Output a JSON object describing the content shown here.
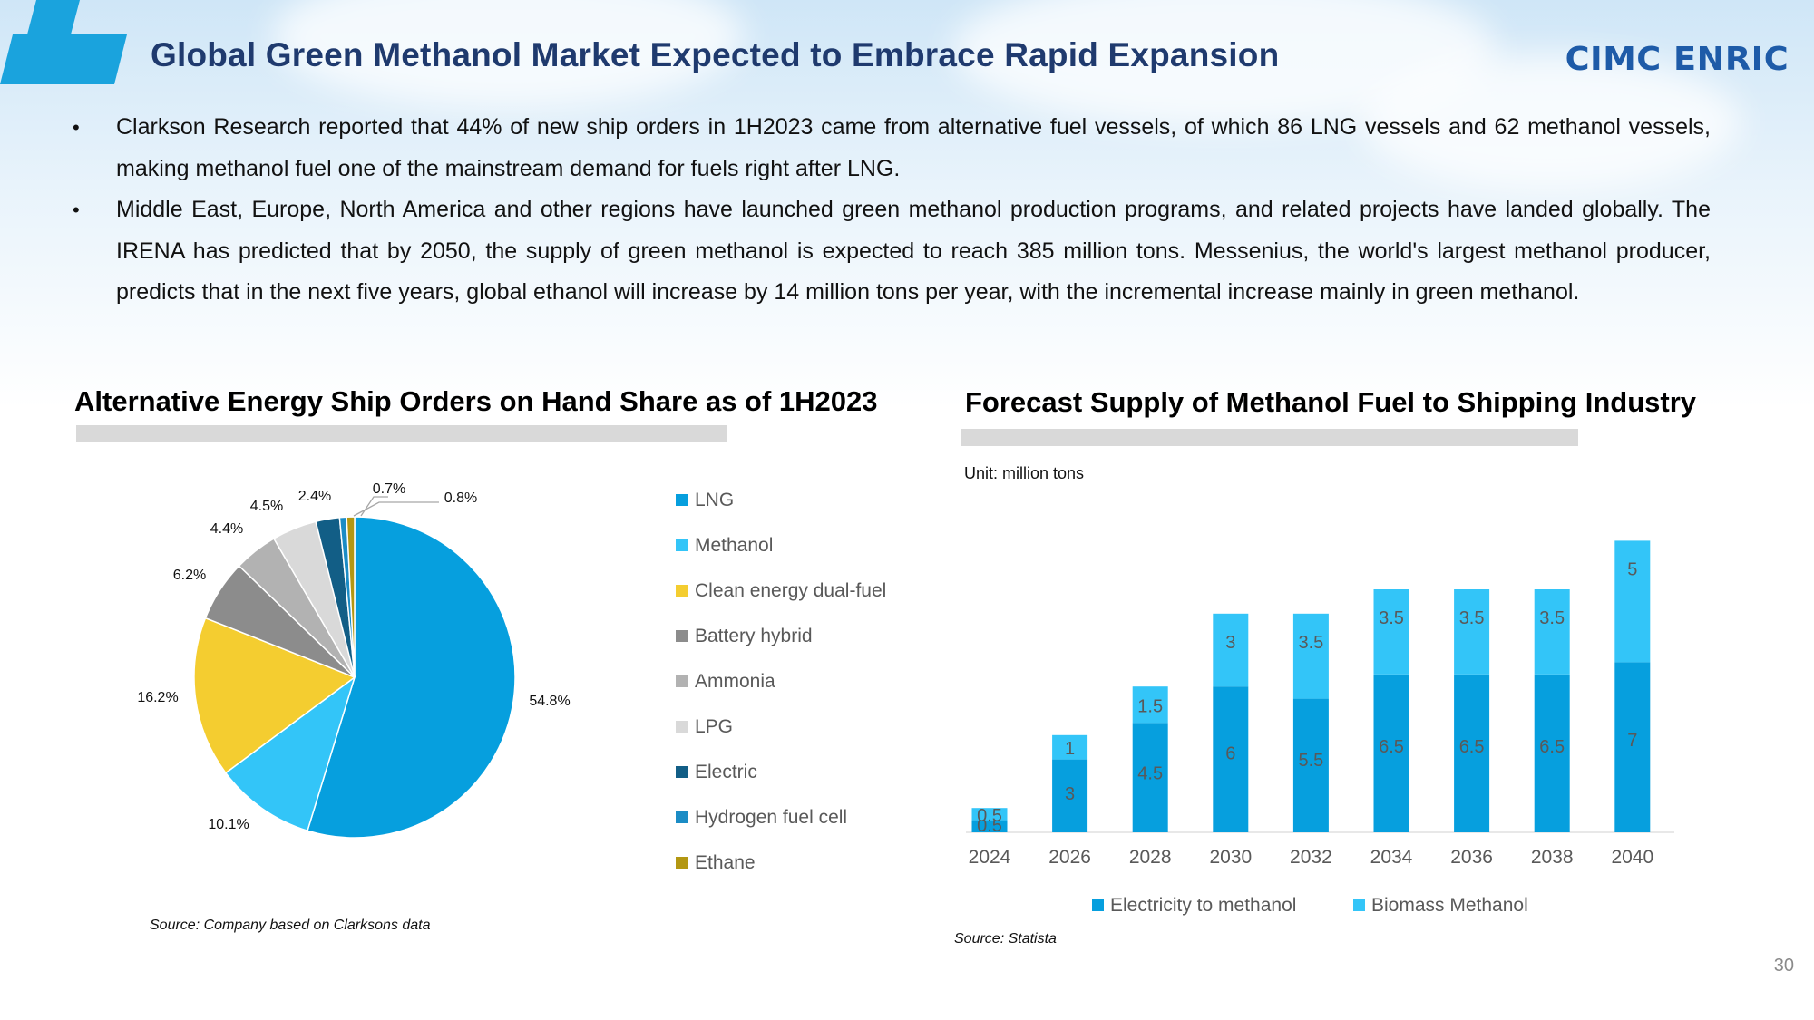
{
  "header": {
    "title": "Global Green Methanol Market Expected to Embrace Rapid Expansion",
    "logo_text": "CIMC ENRIC",
    "accent_color": "#1aa3dd"
  },
  "bullets": [
    "Clarkson Research reported that 44% of new ship orders in 1H2023 came from alternative fuel vessels, of which 86 LNG vessels and 62 methanol vessels, making methanol fuel one of the mainstream demand for fuels right after LNG.",
    "Middle East, Europe, North America and other regions have launched green methanol production programs, and related projects have landed globally. The IRENA has predicted that by 2050, the supply of green methanol is expected to reach 385 million tons. Messenius, the world's largest methanol producer, predicts that in the next five years, global ethanol will increase by 14 million tons per year, with the incremental increase mainly in green methanol."
  ],
  "bullet_glyph": "•",
  "left_panel": {
    "title": "Alternative Energy Ship Orders on Hand Share as of 1H2023",
    "source": "Source: Company based on Clarksons data"
  },
  "right_panel": {
    "title": "Forecast Supply of Methanol Fuel to Shipping Industry",
    "unit": "Unit: million tons",
    "source": "Source: Statista"
  },
  "page_number": "30",
  "chart_data": [
    {
      "type": "pie",
      "title": "Alternative Energy Ship Orders on Hand Share as of 1H2023",
      "legend_position": "right",
      "slices": [
        {
          "name": "LNG",
          "value": 54.8,
          "label": "54.8%",
          "color": "#069fde"
        },
        {
          "name": "Methanol",
          "value": 10.1,
          "label": "10.1%",
          "color": "#33c5f8"
        },
        {
          "name": "Clean energy dual-fuel",
          "value": 16.2,
          "label": "16.2%",
          "color": "#f4cd30"
        },
        {
          "name": "Battery hybrid",
          "value": 6.2,
          "label": "6.2%",
          "color": "#8c8c8c"
        },
        {
          "name": "Ammonia",
          "value": 4.4,
          "label": "4.4%",
          "color": "#b2b2b2"
        },
        {
          "name": "LPG",
          "value": 4.5,
          "label": "4.5%",
          "color": "#d9d9d9"
        },
        {
          "name": "Electric",
          "value": 2.4,
          "label": "2.4%",
          "color": "#125e86"
        },
        {
          "name": "Hydrogen fuel cell",
          "value": 0.7,
          "label": "0.7%",
          "color": "#1b8cc5"
        },
        {
          "name": "Ethane",
          "value": 0.8,
          "label": "0.8%",
          "color": "#b39712"
        }
      ]
    },
    {
      "type": "bar",
      "stacked": true,
      "title": "Forecast Supply of Methanol Fuel to Shipping Industry",
      "unit": "Unit: million tons",
      "categories": [
        "2024",
        "2026",
        "2028",
        "2030",
        "2032",
        "2034",
        "2036",
        "2038",
        "2040"
      ],
      "series": [
        {
          "name": "Electricity to methanol",
          "color": "#069fde",
          "values": [
            0.5,
            3,
            4.5,
            6,
            5.5,
            6.5,
            6.5,
            6.5,
            7
          ]
        },
        {
          "name": "Biomass Methanol",
          "color": "#33c5f8",
          "values": [
            0.5,
            1,
            1.5,
            3,
            3.5,
            3.5,
            3.5,
            3.5,
            5
          ]
        }
      ],
      "ylim": [
        0,
        12
      ],
      "legend_position": "bottom",
      "grid": false
    }
  ]
}
